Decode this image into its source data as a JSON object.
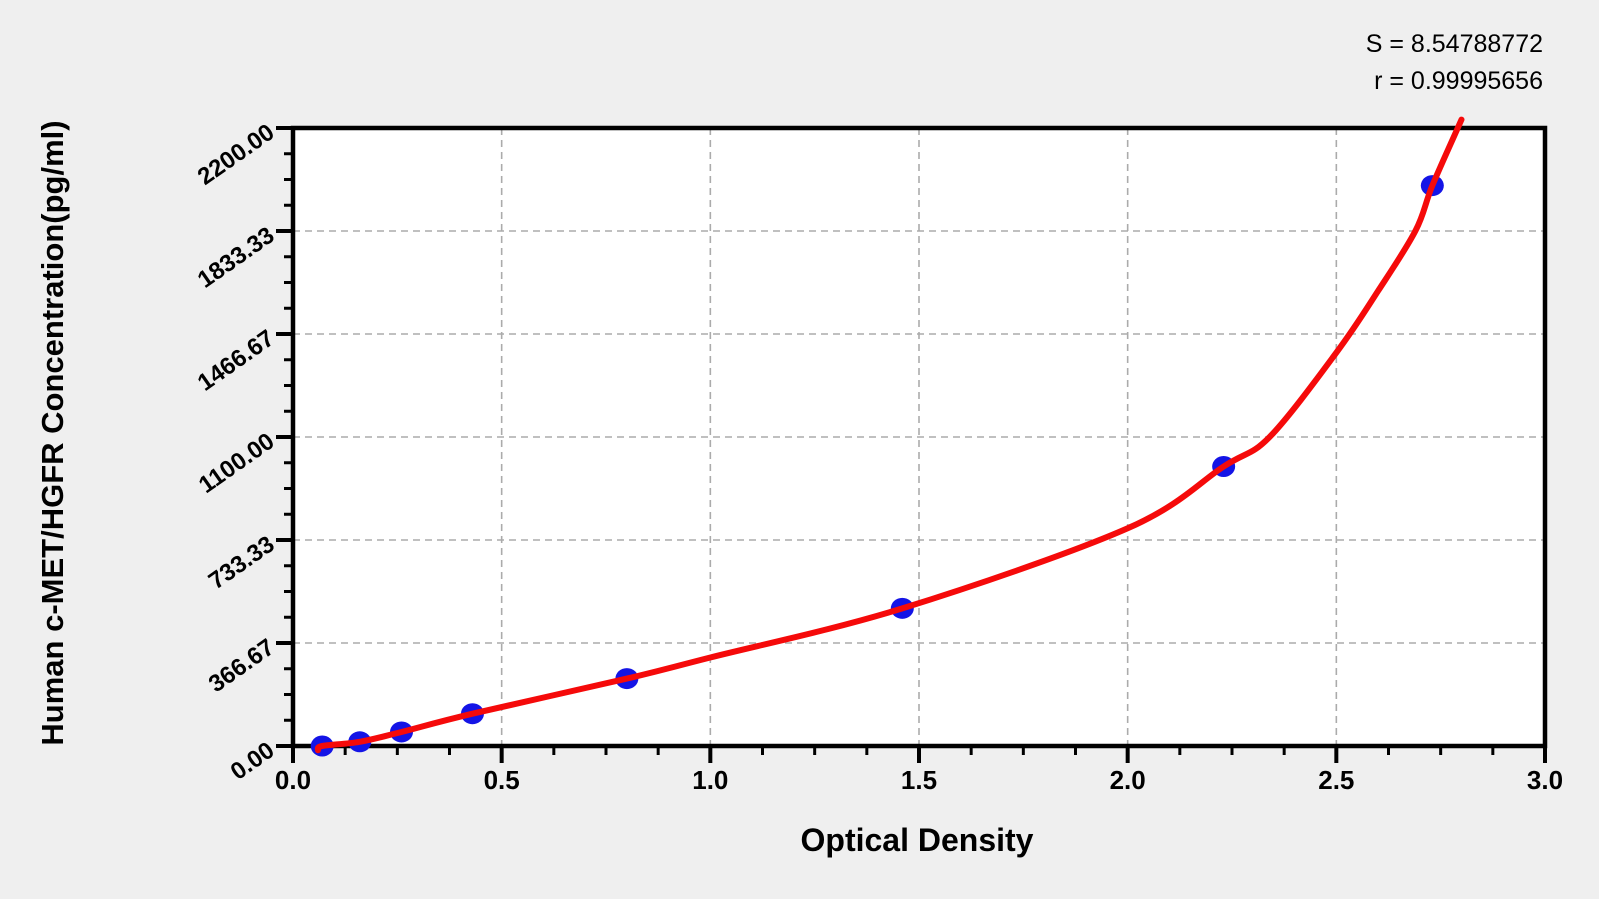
{
  "stats": {
    "s_label": "S = 8.54788772",
    "r_label": "r = 0.99995656"
  },
  "chart_data": {
    "type": "scatter",
    "title": "",
    "xlabel": "Optical Density",
    "ylabel": "Human c-MET/HGFR Concentration(pg/ml)",
    "xlim": [
      0.0,
      3.0
    ],
    "ylim": [
      0,
      2200
    ],
    "x_major_step": 0.5,
    "x_minor_step": 0.125,
    "y_major_step": 366.6667,
    "y_minor_step": 91.6667,
    "x_tick_labels": [
      "0.0",
      "0.5",
      "1.0",
      "1.5",
      "2.0",
      "2.5",
      "3.0"
    ],
    "y_tick_labels": [
      "0.00",
      "366.67",
      "733.33",
      "1100.00",
      "1466.67",
      "1833.33",
      "2200.00"
    ],
    "grid": "dashed-major-both-axes",
    "legend": "none",
    "fit_stats": {
      "S": 8.54788772,
      "r": 0.99995656
    },
    "series": [
      {
        "name": "standard-points",
        "type": "scatter",
        "marker": "circle",
        "color": "#1414e6",
        "points": [
          [
            0.07,
            0
          ],
          [
            0.16,
            15
          ],
          [
            0.26,
            50
          ],
          [
            0.43,
            115
          ],
          [
            0.8,
            240
          ],
          [
            1.46,
            490
          ],
          [
            2.23,
            995
          ],
          [
            2.73,
            1995
          ]
        ]
      },
      {
        "name": "fitted-curve",
        "type": "line",
        "color": "#f50a0a",
        "points": [
          [
            0.06,
            -15
          ],
          [
            0.07,
            0
          ],
          [
            0.16,
            15
          ],
          [
            0.26,
            50
          ],
          [
            0.43,
            115
          ],
          [
            0.8,
            240
          ],
          [
            1.0,
            315
          ],
          [
            1.46,
            490
          ],
          [
            2.0,
            775
          ],
          [
            2.23,
            995
          ],
          [
            2.34,
            1100
          ],
          [
            2.5,
            1400
          ],
          [
            2.6,
            1620
          ],
          [
            2.69,
            1835
          ],
          [
            2.73,
            1995
          ],
          [
            2.8,
            2230
          ]
        ]
      }
    ]
  },
  "colors": {
    "background": "#efefef",
    "plot_background": "#ffffff",
    "frame": "#000000",
    "grid": "#ababab",
    "curve": "#f50a0a",
    "points": "#1414e6",
    "text": "#000000"
  }
}
